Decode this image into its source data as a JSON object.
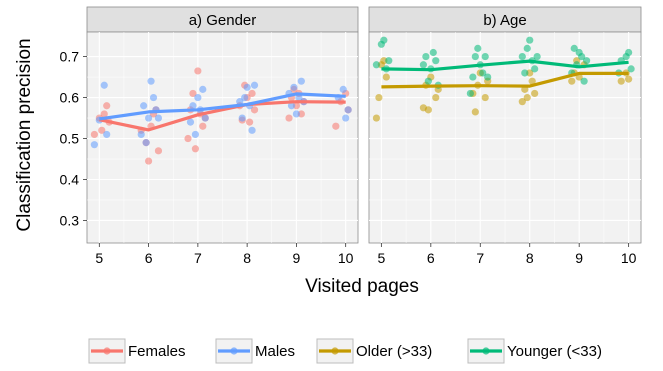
{
  "chart_data": {
    "type": "line",
    "xlabel": "Visited pages",
    "ylabel": "Classification precision",
    "x_ticks": [
      5,
      6,
      7,
      8,
      9,
      10
    ],
    "y_ticks": [
      0.3,
      0.4,
      0.5,
      0.6,
      0.7
    ],
    "xlim": [
      4.75,
      10.25
    ],
    "ylim": [
      0.245,
      0.76
    ],
    "grid": true,
    "legend_position": "bottom",
    "colors": {
      "Females": "#F8766D",
      "Males": "#619CFF",
      "Older (>33)": "#C49A00",
      "Younger (<33)": "#00BA78",
      "panel_bg": "#F2F2F2",
      "grid": "#FFFFFF",
      "strip_bg": "#E0E0E0"
    },
    "panels": [
      {
        "title": "a) Gender",
        "series": [
          {
            "name": "Females",
            "line": [
              [
                5,
                0.546
              ],
              [
                6,
                0.521
              ],
              [
                7,
                0.558
              ],
              [
                8,
                0.583
              ],
              [
                9,
                0.59
              ],
              [
                10,
                0.589
              ]
            ],
            "points": [
              [
                4.9,
                0.51
              ],
              [
                5.0,
                0.55
              ],
              [
                5.05,
                0.52
              ],
              [
                5.1,
                0.56
              ],
              [
                5.2,
                0.54
              ],
              [
                5.15,
                0.58
              ],
              [
                5.85,
                0.52
              ],
              [
                5.95,
                0.49
              ],
              [
                6.0,
                0.445
              ],
              [
                6.05,
                0.53
              ],
              [
                6.1,
                0.56
              ],
              [
                6.2,
                0.47
              ],
              [
                6.15,
                0.57
              ],
              [
                6.8,
                0.5
              ],
              [
                6.85,
                0.57
              ],
              [
                6.9,
                0.61
              ],
              [
                6.95,
                0.475
              ],
              [
                7.0,
                0.665
              ],
              [
                7.05,
                0.56
              ],
              [
                7.1,
                0.53
              ],
              [
                7.15,
                0.55
              ],
              [
                7.85,
                0.58
              ],
              [
                7.9,
                0.545
              ],
              [
                7.95,
                0.63
              ],
              [
                8.0,
                0.6
              ],
              [
                8.05,
                0.54
              ],
              [
                8.1,
                0.61
              ],
              [
                8.15,
                0.57
              ],
              [
                8.85,
                0.55
              ],
              [
                8.9,
                0.6
              ],
              [
                8.95,
                0.62
              ],
              [
                9.0,
                0.58
              ],
              [
                9.05,
                0.61
              ],
              [
                9.1,
                0.56
              ],
              [
                9.15,
                0.59
              ],
              [
                9.8,
                0.53
              ],
              [
                9.9,
                0.59
              ],
              [
                10.0,
                0.61
              ],
              [
                10.05,
                0.57
              ]
            ]
          },
          {
            "name": "Males",
            "line": [
              [
                5,
                0.548
              ],
              [
                6,
                0.565
              ],
              [
                7,
                0.57
              ],
              [
                8,
                0.583
              ],
              [
                9,
                0.609
              ],
              [
                10,
                0.603
              ]
            ],
            "points": [
              [
                4.9,
                0.485
              ],
              [
                5.0,
                0.545
              ],
              [
                5.1,
                0.63
              ],
              [
                5.15,
                0.51
              ],
              [
                5.85,
                0.51
              ],
              [
                5.9,
                0.58
              ],
              [
                5.95,
                0.49
              ],
              [
                6.0,
                0.55
              ],
              [
                6.05,
                0.64
              ],
              [
                6.1,
                0.6
              ],
              [
                6.15,
                0.57
              ],
              [
                6.2,
                0.55
              ],
              [
                6.85,
                0.54
              ],
              [
                6.9,
                0.58
              ],
              [
                6.95,
                0.51
              ],
              [
                7.0,
                0.6
              ],
              [
                7.05,
                0.57
              ],
              [
                7.1,
                0.62
              ],
              [
                7.15,
                0.55
              ],
              [
                7.85,
                0.59
              ],
              [
                7.9,
                0.55
              ],
              [
                7.95,
                0.6
              ],
              [
                8.0,
                0.625
              ],
              [
                8.05,
                0.58
              ],
              [
                8.1,
                0.52
              ],
              [
                8.15,
                0.63
              ],
              [
                8.85,
                0.61
              ],
              [
                8.9,
                0.58
              ],
              [
                8.95,
                0.625
              ],
              [
                9.0,
                0.56
              ],
              [
                9.05,
                0.6
              ],
              [
                9.1,
                0.64
              ],
              [
                9.15,
                0.59
              ],
              [
                9.85,
                0.6
              ],
              [
                9.95,
                0.62
              ],
              [
                10.0,
                0.55
              ],
              [
                10.05,
                0.57
              ]
            ]
          }
        ]
      },
      {
        "title": "b) Age",
        "series": [
          {
            "name": "Older (>33)",
            "line": [
              [
                5,
                0.626
              ],
              [
                6,
                0.628
              ],
              [
                7,
                0.629
              ],
              [
                8,
                0.628
              ],
              [
                9,
                0.659
              ],
              [
                10,
                0.659
              ]
            ],
            "points": [
              [
                4.9,
                0.55
              ],
              [
                4.95,
                0.6
              ],
              [
                5.0,
                0.68
              ],
              [
                5.05,
                0.69
              ],
              [
                5.1,
                0.65
              ],
              [
                5.85,
                0.575
              ],
              [
                5.9,
                0.63
              ],
              [
                5.95,
                0.57
              ],
              [
                6.0,
                0.65
              ],
              [
                6.1,
                0.6
              ],
              [
                6.15,
                0.62
              ],
              [
                6.85,
                0.61
              ],
              [
                6.9,
                0.565
              ],
              [
                6.95,
                0.63
              ],
              [
                7.0,
                0.66
              ],
              [
                7.1,
                0.6
              ],
              [
                7.15,
                0.64
              ],
              [
                7.85,
                0.59
              ],
              [
                7.9,
                0.62
              ],
              [
                7.95,
                0.6
              ],
              [
                8.0,
                0.66
              ],
              [
                8.05,
                0.64
              ],
              [
                8.1,
                0.61
              ],
              [
                8.85,
                0.64
              ],
              [
                8.9,
                0.66
              ],
              [
                8.95,
                0.69
              ],
              [
                9.0,
                0.65
              ],
              [
                9.1,
                0.68
              ],
              [
                9.85,
                0.64
              ],
              [
                9.95,
                0.66
              ],
              [
                10.0,
                0.645
              ]
            ]
          },
          {
            "name": "Younger (<33)",
            "line": [
              [
                5,
                0.67
              ],
              [
                6,
                0.668
              ],
              [
                7,
                0.679
              ],
              [
                8,
                0.689
              ],
              [
                9,
                0.675
              ],
              [
                10,
                0.686
              ]
            ],
            "points": [
              [
                4.9,
                0.68
              ],
              [
                5.0,
                0.73
              ],
              [
                5.05,
                0.74
              ],
              [
                5.1,
                0.67
              ],
              [
                5.15,
                0.69
              ],
              [
                5.85,
                0.68
              ],
              [
                5.9,
                0.7
              ],
              [
                5.95,
                0.64
              ],
              [
                6.0,
                0.67
              ],
              [
                6.05,
                0.71
              ],
              [
                6.1,
                0.69
              ],
              [
                6.15,
                0.63
              ],
              [
                6.8,
                0.61
              ],
              [
                6.85,
                0.65
              ],
              [
                6.9,
                0.7
              ],
              [
                6.95,
                0.72
              ],
              [
                7.0,
                0.68
              ],
              [
                7.05,
                0.66
              ],
              [
                7.1,
                0.7
              ],
              [
                7.15,
                0.65
              ],
              [
                7.85,
                0.7
              ],
              [
                7.9,
                0.66
              ],
              [
                7.95,
                0.72
              ],
              [
                8.0,
                0.74
              ],
              [
                8.05,
                0.69
              ],
              [
                8.1,
                0.67
              ],
              [
                8.15,
                0.7
              ],
              [
                8.85,
                0.66
              ],
              [
                8.9,
                0.72
              ],
              [
                8.95,
                0.68
              ],
              [
                9.0,
                0.71
              ],
              [
                9.05,
                0.7
              ],
              [
                9.1,
                0.64
              ],
              [
                9.15,
                0.69
              ],
              [
                9.8,
                0.66
              ],
              [
                9.85,
                0.69
              ],
              [
                9.95,
                0.7
              ],
              [
                10.0,
                0.71
              ],
              [
                10.05,
                0.67
              ]
            ]
          }
        ]
      }
    ]
  }
}
